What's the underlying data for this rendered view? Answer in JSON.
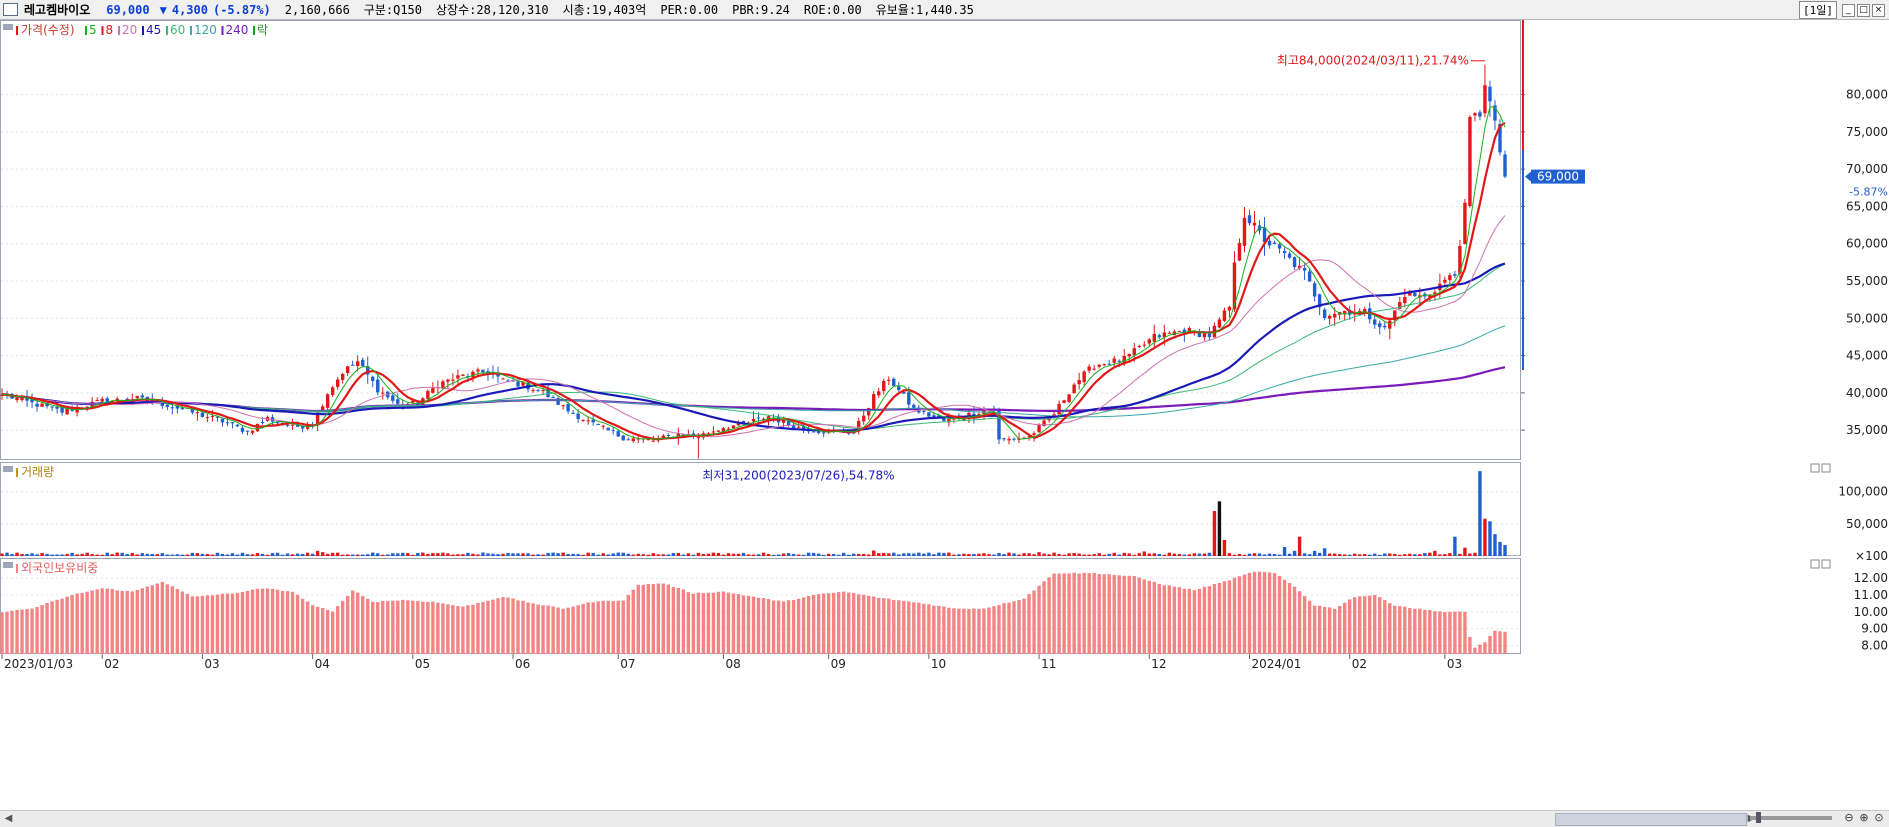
{
  "header": {
    "stock_name": "레고켐바이오",
    "price": "69,000",
    "change_arrow": "▼",
    "change": "4,300",
    "change_pct": "(-5.87%)",
    "volume": "2,160,666",
    "market": "구분:Q150",
    "shares": "상장수:28,120,310",
    "market_cap": "시총:19,403억",
    "per": "PER:0.00",
    "pbr": "PBR:9.24",
    "roe": "ROE:0.00",
    "reserve": "유보율:1,440.35",
    "period": "1일"
  },
  "legend": {
    "price_label": "가격(수정)",
    "ma": [
      {
        "label": "5",
        "color": "#19b019"
      },
      {
        "label": "8",
        "color": "#e01818"
      },
      {
        "label": "20",
        "color": "#d070b0"
      },
      {
        "label": "45",
        "color": "#1a1ab8"
      },
      {
        "label": "60",
        "color": "#3cb878"
      },
      {
        "label": "120",
        "color": "#38a8a8"
      },
      {
        "label": "240",
        "color": "#7a1ab8"
      }
    ],
    "extra": "락"
  },
  "colors": {
    "up": "#e01818",
    "down": "#1f5fd0",
    "foreign": "#f28484",
    "grid": "#e4e4e4"
  },
  "chart_data": [
    {
      "type": "candlestick",
      "title": "가격(수정)",
      "ylim": [
        31000,
        90000
      ],
      "y_ticks": [
        35000,
        40000,
        45000,
        50000,
        55000,
        60000,
        65000,
        70000,
        75000,
        80000
      ],
      "y_tick_labels": [
        "35,000",
        "40,000",
        "45,000",
        "50,000",
        "55,000",
        "60,000",
        "65,000",
        "70,000",
        "75,000",
        "80,000"
      ],
      "x_tick_labels": [
        "2023/01/03",
        "02",
        "03",
        "04",
        "05",
        "06",
        "07",
        "08",
        "09",
        "10",
        "11",
        "12",
        "2024/01",
        "02",
        "03"
      ],
      "current_price_label": "69,000",
      "current_change_label": "-5.87%",
      "current_price": 69000,
      "annotation_high": {
        "text": "최고84,000(2024/03/11),21.74%",
        "value": 84000,
        "session": 296
      },
      "annotation_low": {
        "text": "최저31,200(2023/07/26),54.78%",
        "value": 31200,
        "session": 139
      },
      "close_keypoints": [
        [
          0,
          39800
        ],
        [
          6,
          38600
        ],
        [
          12,
          37500
        ],
        [
          20,
          38900
        ],
        [
          27,
          39200
        ],
        [
          33,
          38400
        ],
        [
          40,
          37000
        ],
        [
          44,
          36200
        ],
        [
          49,
          34800
        ],
        [
          53,
          36600
        ],
        [
          58,
          35400
        ],
        [
          62,
          35800
        ],
        [
          65,
          40000
        ],
        [
          68,
          42800
        ],
        [
          71,
          44200
        ],
        [
          75,
          40500
        ],
        [
          79,
          38400
        ],
        [
          83,
          38600
        ],
        [
          87,
          41200
        ],
        [
          92,
          42300
        ],
        [
          97,
          42900
        ],
        [
          100,
          41600
        ],
        [
          104,
          41100
        ],
        [
          108,
          40100
        ],
        [
          113,
          37600
        ],
        [
          118,
          35800
        ],
        [
          124,
          34000
        ],
        [
          130,
          33600
        ],
        [
          135,
          34500
        ],
        [
          139,
          34200
        ],
        [
          144,
          35400
        ],
        [
          148,
          35800
        ],
        [
          153,
          36900
        ],
        [
          158,
          35500
        ],
        [
          163,
          34900
        ],
        [
          170,
          34700
        ],
        [
          174,
          39500
        ],
        [
          177,
          42000
        ],
        [
          182,
          37800
        ],
        [
          188,
          36200
        ],
        [
          193,
          37100
        ],
        [
          198,
          38000
        ],
        [
          199,
          33600
        ],
        [
          205,
          34100
        ],
        [
          210,
          37200
        ],
        [
          214,
          41200
        ],
        [
          218,
          43700
        ],
        [
          224,
          44500
        ],
        [
          230,
          47500
        ],
        [
          236,
          48400
        ],
        [
          241,
          47700
        ],
        [
          245,
          51500
        ],
        [
          246,
          57000
        ],
        [
          248,
          64000
        ],
        [
          252,
          60500
        ],
        [
          256,
          58500
        ],
        [
          260,
          56000
        ],
        [
          264,
          50500
        ],
        [
          268,
          51000
        ],
        [
          272,
          50800
        ],
        [
          276,
          48500
        ],
        [
          280,
          53300
        ],
        [
          284,
          52800
        ],
        [
          288,
          55100
        ],
        [
          290,
          55800
        ],
        [
          292,
          64800
        ],
        [
          293,
          76500
        ],
        [
          295,
          77500
        ],
        [
          296,
          81800
        ],
        [
          298,
          75800
        ],
        [
          300,
          69000
        ]
      ],
      "volume": {
        "title": "거래량",
        "ylim": [
          0,
          140000
        ],
        "y_ticks": [
          100,
          50000,
          100000
        ],
        "y_tick_labels": [
          "×100",
          "50,000",
          "100,000"
        ],
        "spikes": [
          [
            63,
            8000
          ],
          [
            64,
            6000
          ],
          [
            174,
            8500
          ],
          [
            207,
            6000
          ],
          [
            228,
            7000
          ],
          [
            242,
            70000
          ],
          [
            243,
            85000
          ],
          [
            244,
            25000
          ],
          [
            256,
            14000
          ],
          [
            258,
            8000
          ],
          [
            259,
            30000
          ],
          [
            262,
            8000
          ],
          [
            264,
            12000
          ],
          [
            286,
            8000
          ],
          [
            290,
            30000
          ],
          [
            292,
            13000
          ],
          [
            294,
            5000
          ],
          [
            295,
            132000
          ],
          [
            296,
            58000
          ],
          [
            297,
            54000
          ],
          [
            298,
            34000
          ],
          [
            299,
            22000
          ],
          [
            300,
            17000
          ]
        ],
        "base": 3600
      },
      "foreign_holding": {
        "title": "외국인보유비중",
        "ylim": [
          7.5,
          13.2
        ],
        "y_ticks": [
          8,
          9,
          10,
          11,
          12
        ],
        "y_tick_labels": [
          "8.00",
          "9.00",
          "10.00",
          "11.00",
          "12.00"
        ],
        "keypoints": [
          [
            0,
            10.0
          ],
          [
            6,
            10.2
          ],
          [
            14,
            11.0
          ],
          [
            20,
            11.4
          ],
          [
            26,
            11.2
          ],
          [
            32,
            11.8
          ],
          [
            38,
            10.9
          ],
          [
            46,
            11.1
          ],
          [
            52,
            11.4
          ],
          [
            58,
            11.2
          ],
          [
            62,
            10.4
          ],
          [
            66,
            10.0
          ],
          [
            70,
            11.3
          ],
          [
            74,
            10.6
          ],
          [
            80,
            10.7
          ],
          [
            86,
            10.6
          ],
          [
            92,
            10.3
          ],
          [
            100,
            10.9
          ],
          [
            106,
            10.5
          ],
          [
            112,
            10.2
          ],
          [
            118,
            10.6
          ],
          [
            124,
            10.7
          ],
          [
            127,
            11.6
          ],
          [
            132,
            11.7
          ],
          [
            138,
            11.1
          ],
          [
            144,
            11.2
          ],
          [
            150,
            10.9
          ],
          [
            156,
            10.6
          ],
          [
            162,
            11.0
          ],
          [
            168,
            11.2
          ],
          [
            176,
            10.8
          ],
          [
            184,
            10.5
          ],
          [
            190,
            10.2
          ],
          [
            196,
            10.2
          ],
          [
            204,
            10.8
          ],
          [
            210,
            12.3
          ],
          [
            218,
            12.3
          ],
          [
            226,
            12.1
          ],
          [
            232,
            11.6
          ],
          [
            238,
            11.3
          ],
          [
            244,
            11.8
          ],
          [
            250,
            12.4
          ],
          [
            254,
            12.3
          ],
          [
            258,
            11.5
          ],
          [
            262,
            10.4
          ],
          [
            266,
            10.2
          ],
          [
            270,
            10.9
          ],
          [
            274,
            11.0
          ],
          [
            278,
            10.4
          ],
          [
            282,
            10.2
          ],
          [
            288,
            10.0
          ],
          [
            292,
            10.0
          ],
          [
            293,
            8.5
          ],
          [
            294,
            7.9
          ],
          [
            296,
            8.2
          ],
          [
            298,
            8.9
          ],
          [
            300,
            8.8
          ]
        ]
      }
    }
  ]
}
